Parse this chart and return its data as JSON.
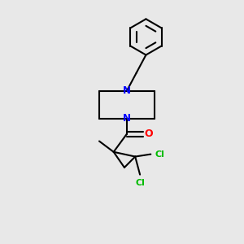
{
  "bg_color": "#e8e8e8",
  "bond_color": "#000000",
  "n_color": "#0000ff",
  "o_color": "#ff0000",
  "cl_color": "#00bb00",
  "line_width": 1.5,
  "font_size": 8.5,
  "fig_width": 3.0,
  "fig_height": 3.0,
  "dpi": 100,
  "xlim": [
    0,
    1
  ],
  "ylim": [
    0,
    1
  ]
}
